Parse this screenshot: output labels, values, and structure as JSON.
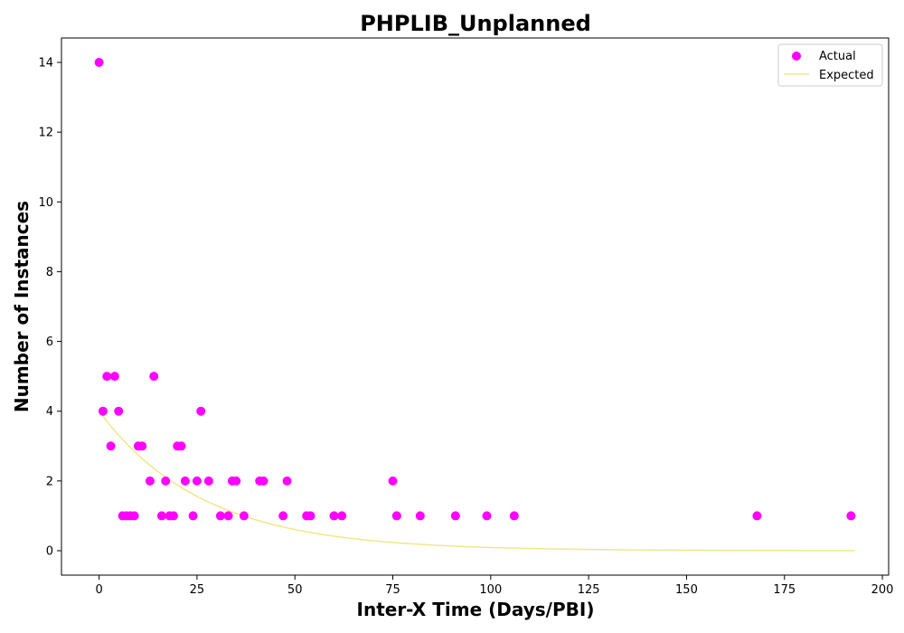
{
  "chart_data": {
    "type": "scatter",
    "title": "PHPLIB_Unplanned",
    "xlabel": "Inter-X Time (Days/PBI)",
    "ylabel": "Number of Instances",
    "xlim": [
      -9.6,
      201.6
    ],
    "ylim": [
      -0.7,
      14.7
    ],
    "xticks": [
      0,
      25,
      50,
      75,
      100,
      125,
      150,
      175,
      200
    ],
    "yticks": [
      0,
      2,
      4,
      6,
      8,
      10,
      12,
      14
    ],
    "grid": false,
    "legend_position": "top-right",
    "series": [
      {
        "name": "Actual",
        "kind": "scatter",
        "color": "#ff00ff",
        "points": [
          [
            0,
            14
          ],
          [
            1,
            4
          ],
          [
            2,
            5
          ],
          [
            3,
            3
          ],
          [
            4,
            5
          ],
          [
            5,
            4
          ],
          [
            6,
            1
          ],
          [
            7,
            1
          ],
          [
            8,
            1
          ],
          [
            9,
            1
          ],
          [
            10,
            3
          ],
          [
            11,
            3
          ],
          [
            13,
            2
          ],
          [
            14,
            5
          ],
          [
            16,
            1
          ],
          [
            17,
            2
          ],
          [
            18,
            1
          ],
          [
            19,
            1
          ],
          [
            20,
            3
          ],
          [
            21,
            3
          ],
          [
            22,
            2
          ],
          [
            24,
            1
          ],
          [
            25,
            2
          ],
          [
            26,
            4
          ],
          [
            28,
            2
          ],
          [
            31,
            1
          ],
          [
            33,
            1
          ],
          [
            34,
            2
          ],
          [
            35,
            2
          ],
          [
            37,
            1
          ],
          [
            41,
            2
          ],
          [
            42,
            2
          ],
          [
            47,
            1
          ],
          [
            48,
            2
          ],
          [
            53,
            1
          ],
          [
            54,
            1
          ],
          [
            60,
            1
          ],
          [
            62,
            1
          ],
          [
            75,
            2
          ],
          [
            76,
            1
          ],
          [
            82,
            1
          ],
          [
            91,
            1
          ],
          [
            99,
            1
          ],
          [
            106,
            1
          ],
          [
            168,
            1
          ],
          [
            192,
            1
          ]
        ]
      },
      {
        "name": "Expected",
        "kind": "line",
        "color": "#f0e68c",
        "model": "exponential",
        "amplitude": 4.0,
        "rate": 0.0377,
        "x_start": 0,
        "x_end": 193
      }
    ]
  }
}
